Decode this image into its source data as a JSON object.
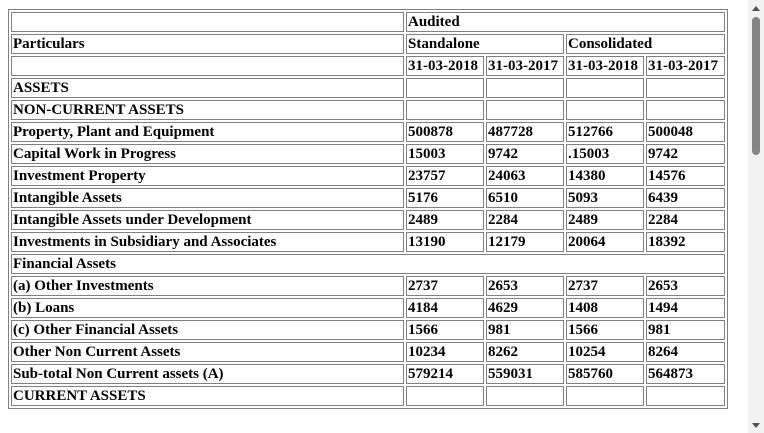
{
  "header": {
    "audited": "Audited",
    "particulars": "Particulars",
    "standalone": "Standalone",
    "consolidated": "Consolidated",
    "dates": [
      "31-03-2018",
      "31-03-2017",
      "31-03-2018",
      "31-03-2017"
    ]
  },
  "rows": [
    {
      "label": "ASSETS",
      "values": [
        "",
        "",
        "",
        ""
      ]
    },
    {
      "label": "NON-CURRENT ASSETS",
      "values": [
        "",
        "",
        "",
        ""
      ]
    },
    {
      "label": "Property, Plant and Equipment",
      "values": [
        "500878",
        "487728",
        "512766",
        "500048"
      ]
    },
    {
      "label": "Capital Work in Progress",
      "values": [
        "15003",
        "9742",
        ".15003",
        "9742"
      ]
    },
    {
      "label": "Investment Property",
      "values": [
        "23757",
        "24063",
        "14380",
        "14576"
      ]
    },
    {
      "label": "Intangible Assets",
      "values": [
        "5176",
        "6510",
        "5093",
        "6439"
      ]
    },
    {
      "label": "Intangible Assets under Development",
      "values": [
        "2489",
        "2284",
        "2489",
        "2284"
      ]
    },
    {
      "label": "Investments in Subsidiary and Associates",
      "values": [
        "13190",
        "12179",
        "20064",
        "18392"
      ]
    },
    {
      "label": "Financial Assets",
      "values": null
    },
    {
      "label": "(a) Other Investments",
      "values": [
        "2737",
        "2653",
        "2737",
        "2653"
      ]
    },
    {
      "label": "(b) Loans",
      "values": [
        "4184",
        "4629",
        "1408",
        "1494"
      ]
    },
    {
      "label": "(c) Other Financial Assets",
      "values": [
        "1566",
        "981",
        "1566",
        "981"
      ]
    },
    {
      "label": "Other Non Current Assets",
      "values": [
        "10234",
        "8262",
        "10254",
        "8264"
      ]
    },
    {
      "label": "Sub-total Non Current assets (A)",
      "values": [
        "579214",
        "559031",
        "585760",
        "564873"
      ]
    },
    {
      "label": "CURRENT ASSETS",
      "values": [
        "",
        "",
        "",
        ""
      ]
    }
  ]
}
